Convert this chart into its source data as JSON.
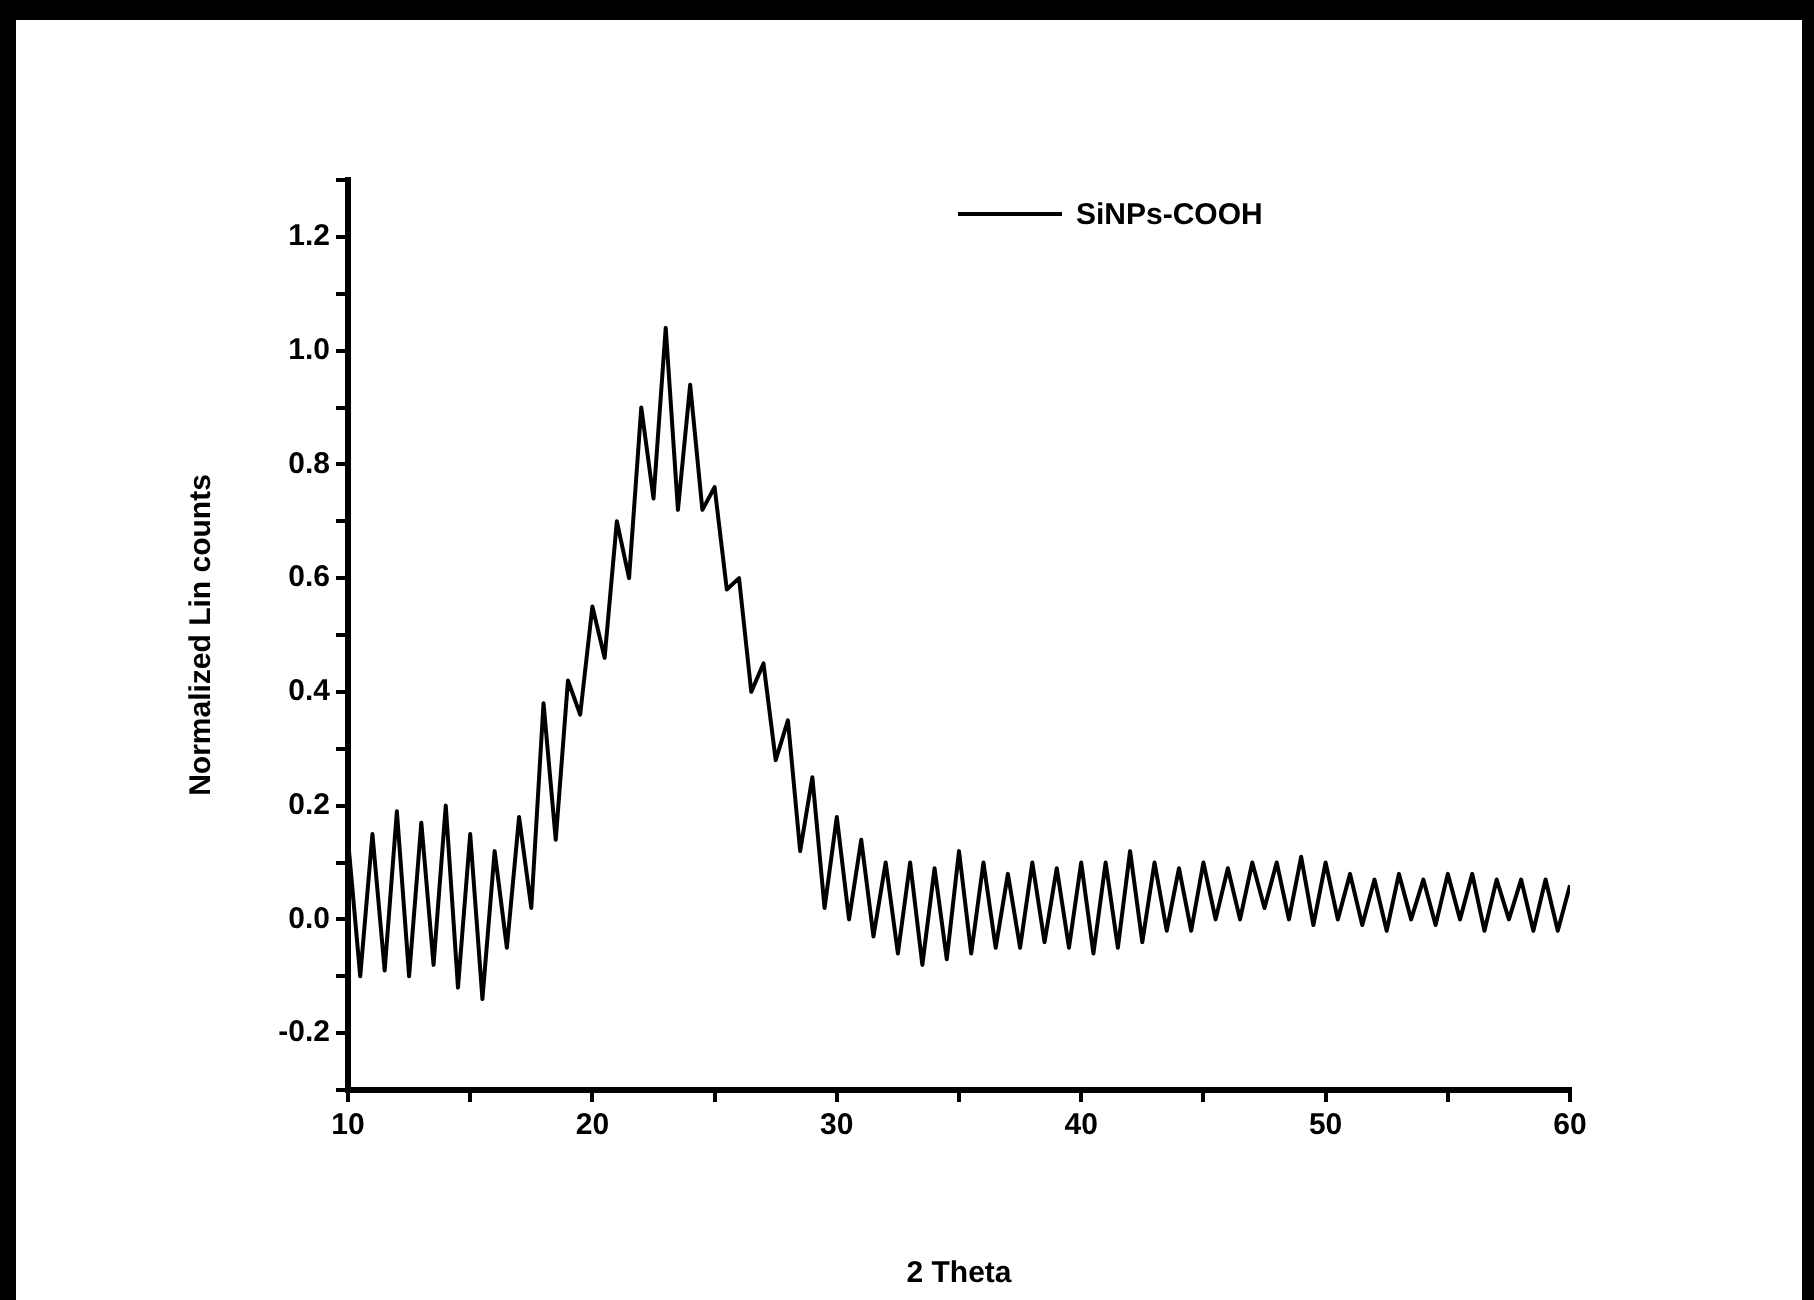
{
  "chart_data": {
    "type": "line",
    "xlabel": "2 Theta",
    "ylabel": "Normalized Lin counts",
    "xlim": [
      10,
      60
    ],
    "xticks": [
      10,
      {
        "value": 15,
        "label": null
      },
      20,
      {
        "value": 25,
        "label": null
      },
      30,
      {
        "value": 35,
        "label": null
      },
      40,
      {
        "value": 45,
        "label": null
      },
      50,
      {
        "value": 55,
        "label": null
      },
      60
    ],
    "ylim": [
      -0.3,
      1.3
    ],
    "yticks": [
      {
        "value": -0.3,
        "label": null
      },
      -0.2,
      {
        "value": -0.1,
        "label": null
      },
      {
        "value": 0,
        "label": "0.0"
      },
      {
        "value": 0.1,
        "label": null
      },
      0.2,
      {
        "value": 0.3,
        "label": null
      },
      0.4,
      {
        "value": 0.5,
        "label": null
      },
      0.6,
      {
        "value": 0.7,
        "label": null
      },
      0.8,
      {
        "value": 0.9,
        "label": null
      },
      {
        "value": 1,
        "label": "1.0"
      },
      {
        "value": 1.1,
        "label": null
      },
      1.2,
      {
        "value": 1.3,
        "label": null
      }
    ],
    "legend": "top right",
    "marker": "none",
    "line_style": "solid",
    "x": [
      10,
      10.5,
      11,
      11.5,
      12,
      12.5,
      13,
      13.5,
      14,
      14.5,
      15,
      15.5,
      16,
      16.5,
      17,
      17.5,
      18,
      18.5,
      19,
      19.5,
      20,
      20.5,
      21,
      21.5,
      22,
      22.5,
      23,
      23.5,
      24,
      24.5,
      25,
      25.5,
      26,
      26.5,
      27,
      27.5,
      28,
      28.5,
      29,
      29.5,
      30,
      30.5,
      31,
      31.5,
      32,
      32.5,
      33,
      33.5,
      34,
      34.5,
      35,
      35.5,
      36,
      36.5,
      37,
      37.5,
      38,
      38.5,
      39,
      39.5,
      40,
      40.5,
      41,
      41.5,
      42,
      42.5,
      43,
      43.5,
      44,
      44.5,
      45,
      45.5,
      46,
      46.5,
      47,
      47.5,
      48,
      48.5,
      49,
      49.5,
      50,
      50.5,
      51,
      51.5,
      52,
      52.5,
      53,
      53.5,
      54,
      54.5,
      55,
      55.5,
      56,
      56.5,
      57,
      57.5,
      58,
      58.5,
      59,
      59.5,
      60
    ],
    "series": [
      {
        "name": "SiNPs-COOH",
        "color": "#000000",
        "values": [
          0.14,
          -0.1,
          0.15,
          -0.09,
          0.19,
          -0.1,
          0.17,
          -0.08,
          0.2,
          -0.12,
          0.15,
          -0.14,
          0.12,
          -0.05,
          0.18,
          0.02,
          0.38,
          0.14,
          0.42,
          0.36,
          0.55,
          0.46,
          0.7,
          0.6,
          0.9,
          0.74,
          1.04,
          0.72,
          0.94,
          0.72,
          0.76,
          0.58,
          0.6,
          0.4,
          0.45,
          0.28,
          0.35,
          0.12,
          0.25,
          0.02,
          0.18,
          0,
          0.14,
          -0.03,
          0.1,
          -0.06,
          0.1,
          -0.08,
          0.09,
          -0.07,
          0.12,
          -0.06,
          0.1,
          -0.05,
          0.08,
          -0.05,
          0.1,
          -0.04,
          0.09,
          -0.05,
          0.1,
          -0.06,
          0.1,
          -0.05,
          0.12,
          -0.04,
          0.1,
          -0.02,
          0.09,
          -0.02,
          0.1,
          0,
          0.09,
          0,
          0.1,
          0.02,
          0.1,
          0,
          0.11,
          -0.01,
          0.1,
          0,
          0.08,
          -0.01,
          0.07,
          -0.02,
          0.08,
          0,
          0.07,
          -0.01,
          0.08,
          0,
          0.08,
          -0.02,
          0.07,
          0,
          0.07,
          -0.02,
          0.07,
          -0.02,
          0.06
        ]
      }
    ]
  }
}
